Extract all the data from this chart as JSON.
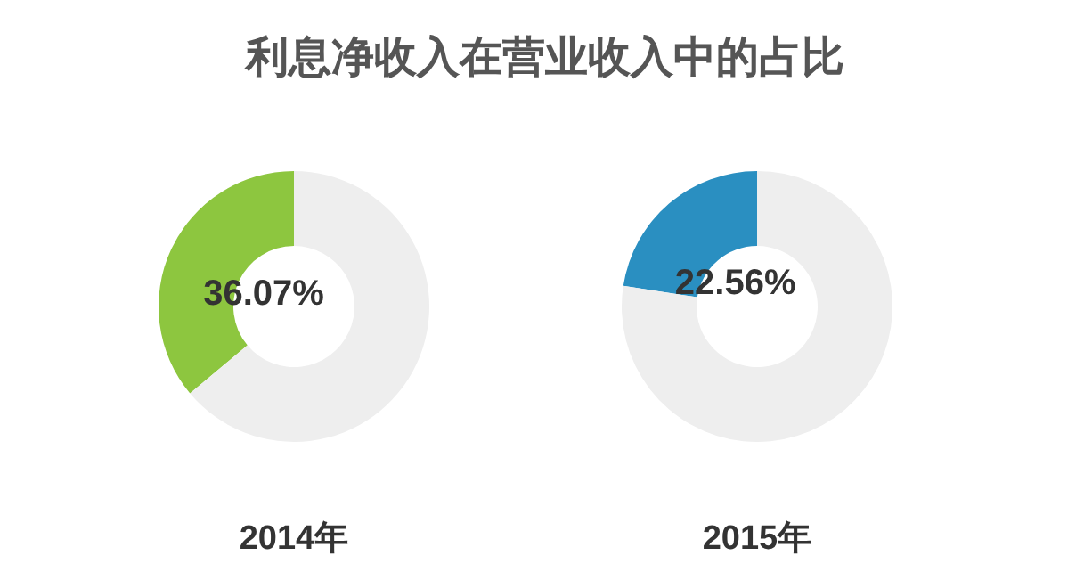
{
  "chart_data": [
    {
      "type": "donut",
      "title": "利息净收入在营业收入中的占比",
      "xlabel": "2014年",
      "categories": [
        null,
        null
      ],
      "values": [
        36.07,
        63.93
      ],
      "colors": [
        "#8dc63f",
        "#eeeeee"
      ],
      "value_labels": [
        "36.07%",
        null
      ]
    },
    {
      "type": "donut",
      "xlabel": "2015年",
      "categories": [
        null,
        null
      ],
      "values": [
        22.56,
        77.44
      ],
      "colors": [
        "#2a8fc1",
        "#eeeeee"
      ],
      "value_labels": [
        "22.56%",
        null
      ]
    }
  ]
}
